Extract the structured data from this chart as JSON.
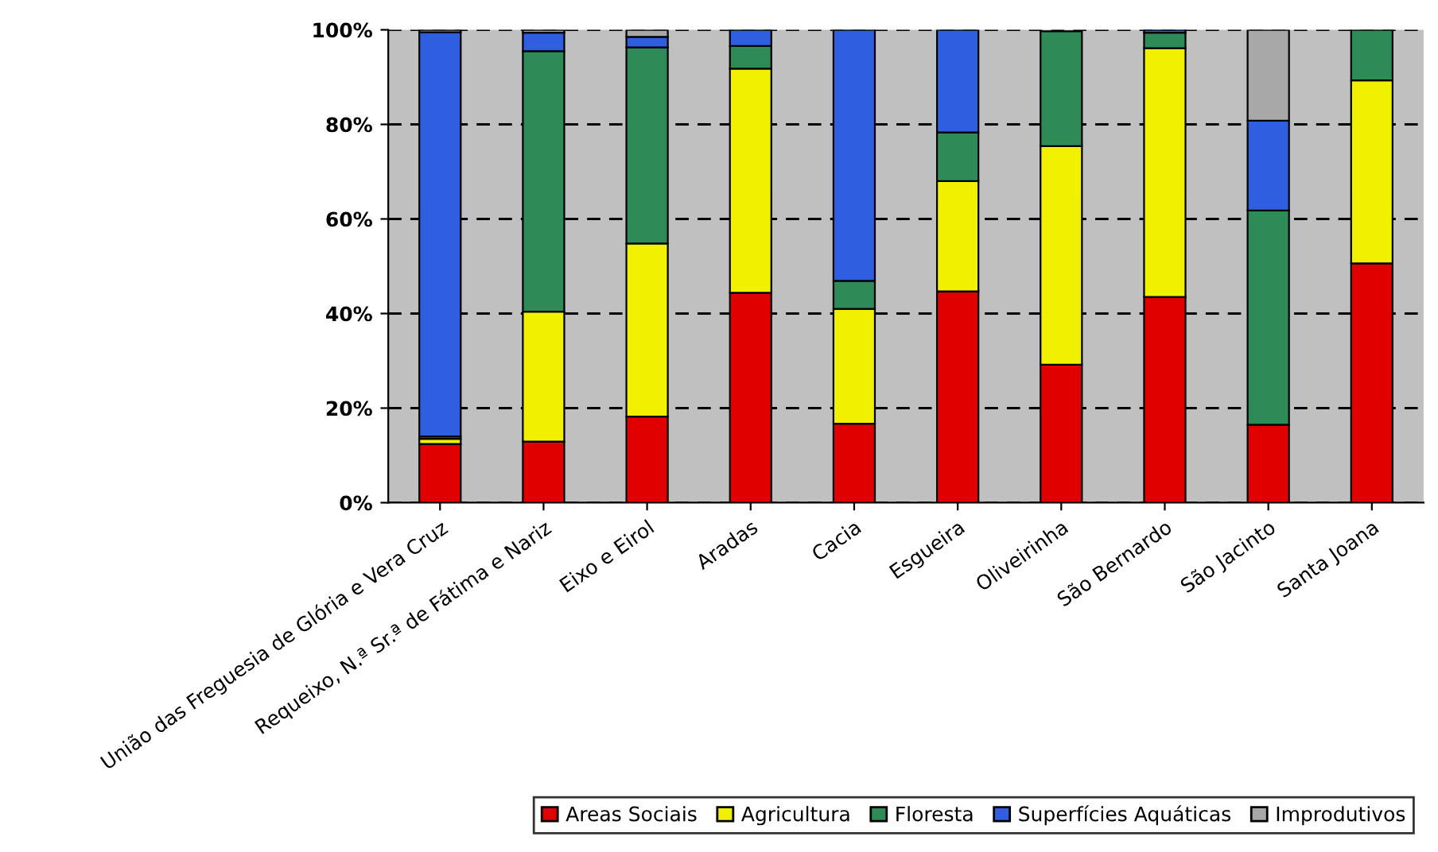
{
  "chart_data": {
    "type": "bar",
    "stacked": true,
    "categories": [
      "União das Freguesia de Glória e Vera Cruz",
      "Requeixo, N.ª Sr.ª de Fátima e Nariz",
      "Eixo e Eirol",
      "Aradas",
      "Cacia",
      "Esgueira",
      "Oliveirinha",
      "São Bernardo",
      "São Jacinto",
      "Santa Joana"
    ],
    "series": [
      {
        "name": "Areas Sociais",
        "color": "#e00000",
        "values": [
          12.4,
          12.9,
          18.2,
          44.4,
          16.7,
          44.7,
          29.2,
          43.5,
          16.5,
          50.6
        ]
      },
      {
        "name": "Agricultura",
        "color": "#f0f000",
        "values": [
          1.1,
          27.5,
          36.6,
          47.4,
          24.3,
          23.3,
          46.2,
          52.6,
          null,
          38.7
        ]
      },
      {
        "name": "Floresta",
        "color": "#2e8b57",
        "values": [
          0.5,
          55.1,
          41.5,
          4.8,
          5.9,
          10.3,
          24.3,
          3.3,
          45.3,
          10.7
        ]
      },
      {
        "name": "Superfícies Aquáticas",
        "color": "#2f5fe0",
        "values": [
          85.5,
          3.9,
          2.2,
          3.4,
          53.1,
          21.7,
          null,
          0.6,
          19.0,
          null
        ]
      },
      {
        "name": "Improdutivos",
        "color": "#a8a8a8",
        "values": [
          0.5,
          0.6,
          1.5,
          null,
          null,
          null,
          null,
          null,
          19.2,
          null
        ]
      }
    ],
    "ylim": [
      0,
      100
    ],
    "yticks": [
      {
        "value": 0,
        "label": "0%"
      },
      {
        "value": 20,
        "label": "20%"
      },
      {
        "value": 40,
        "label": "40%"
      },
      {
        "value": 60,
        "label": "60%"
      },
      {
        "value": 80,
        "label": "80%"
      },
      {
        "value": 100,
        "label": "100%"
      }
    ],
    "grid": "y",
    "legend": "bottom right"
  }
}
